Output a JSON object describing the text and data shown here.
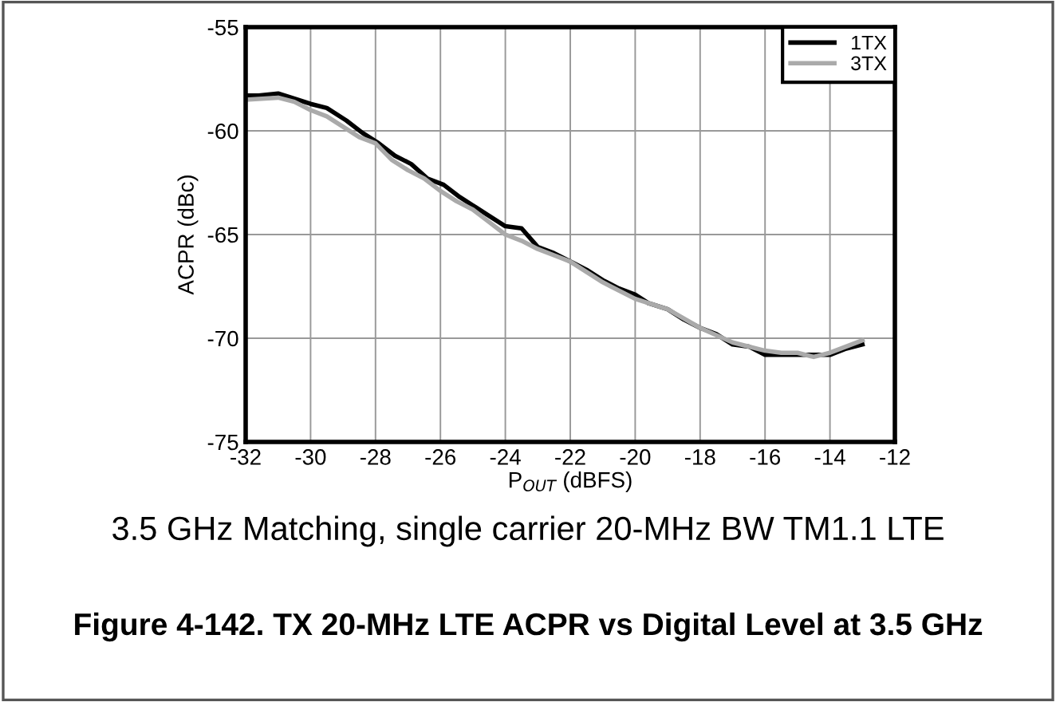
{
  "chart_data": {
    "type": "line",
    "title": "Figure 4-142. TX 20-MHz LTE ACPR vs Digital Level at 3.5 GHz",
    "subtitle": "3.5 GHz Matching, single carrier 20-MHz BW TM1.1 LTE",
    "xlabel": "P$_{OUT}$ (dBFS)",
    "ylabel": "ACPR (dBc)",
    "xlim": [
      -32,
      -12
    ],
    "ylim": [
      -75,
      -55
    ],
    "xticks": [
      -32,
      -30,
      -28,
      -26,
      -24,
      -22,
      -20,
      -18,
      -16,
      -14,
      -12
    ],
    "yticks": [
      -75,
      -70,
      -65,
      -60,
      -55
    ],
    "grid": true,
    "legend": "top right",
    "line_style": "solid",
    "marker": "none",
    "series": [
      {
        "name": "1TX",
        "color": "#000000",
        "x": [
          -32,
          -31.6,
          -31,
          -30.4,
          -30,
          -29.5,
          -28.9,
          -28.4,
          -27.9,
          -27.4,
          -26.9,
          -26.4,
          -25.9,
          -25.4,
          -24.9,
          -24.5,
          -24,
          -23.5,
          -23,
          -22.5,
          -22,
          -21.5,
          -21,
          -20.5,
          -20,
          -19.6,
          -19,
          -18.5,
          -18,
          -17.5,
          -17,
          -16.5,
          -16,
          -15.5,
          -15,
          -14.5,
          -14,
          -13.5,
          -13
        ],
        "values": [
          -58.3,
          -58.3,
          -58.2,
          -58.5,
          -58.7,
          -58.9,
          -59.5,
          -60.1,
          -60.6,
          -61.2,
          -61.6,
          -62.3,
          -62.6,
          -63.2,
          -63.7,
          -64.1,
          -64.6,
          -64.7,
          -65.6,
          -65.9,
          -66.3,
          -66.7,
          -67.2,
          -67.6,
          -67.9,
          -68.3,
          -68.6,
          -69.1,
          -69.5,
          -69.8,
          -70.3,
          -70.4,
          -70.8,
          -70.8,
          -70.8,
          -70.8,
          -70.8,
          -70.5,
          -70.3
        ]
      },
      {
        "name": "3TX",
        "color": "#aaaaaa",
        "x": [
          -32,
          -31,
          -30.5,
          -30,
          -29.5,
          -29,
          -28.5,
          -28,
          -27.5,
          -27,
          -26.5,
          -26,
          -25.5,
          -25,
          -24.5,
          -24,
          -23.5,
          -23,
          -22.5,
          -22,
          -21,
          -20,
          -19,
          -18,
          -17,
          -16,
          -15.5,
          -15,
          -14.5,
          -14,
          -13.5,
          -13
        ],
        "values": [
          -58.5,
          -58.4,
          -58.6,
          -59.0,
          -59.3,
          -59.8,
          -60.3,
          -60.6,
          -61.4,
          -61.9,
          -62.3,
          -62.9,
          -63.4,
          -63.8,
          -64.4,
          -65.0,
          -65.3,
          -65.7,
          -66.0,
          -66.3,
          -67.3,
          -68.1,
          -68.6,
          -69.5,
          -70.2,
          -70.6,
          -70.7,
          -70.7,
          -70.9,
          -70.7,
          -70.4,
          -70.1
        ]
      }
    ]
  }
}
